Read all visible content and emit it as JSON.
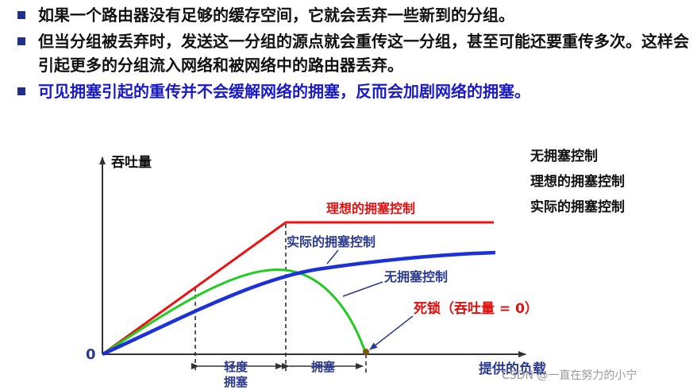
{
  "bullets": [
    {
      "text": "如果一个路由器没有足够的缓存空间，它就会丢弃一些新到的分组。",
      "color": "#111111"
    },
    {
      "text": "但当分组被丢弃时，发送这一分组的源点就会重传这一分组，甚至可能还要重传多次。这样会引起更多的分组流入网络和被网络中的路由器丢弃。",
      "color": "#111111"
    },
    {
      "text": "可见拥塞引起的重传并不会缓解网络的拥塞，反而会加剧网络的拥塞。",
      "color": "#1a1acc"
    }
  ],
  "legend": [
    "无拥塞控制",
    "理想的拥塞控制",
    "实际的拥塞控制"
  ],
  "diagram": {
    "y_axis_label": "吞吐量",
    "x_axis_label": "提供的负载",
    "origin_label": "0",
    "curve_labels": {
      "ideal": "理想的拥塞控制",
      "actual": "实际的拥塞控制",
      "none": "无拥塞控制",
      "deadlock": "死锁（吞吐量 = 0）"
    },
    "regions": {
      "light": [
        "轻度",
        "拥塞"
      ],
      "heavy": "拥塞"
    },
    "colors": {
      "ideal": "#ee1111",
      "actual": "#1c32d8",
      "none": "#22cc22",
      "label_blue": "#2b3a8f",
      "label_red": "#e01010",
      "axis": "#333333"
    }
  },
  "watermark": "CSDN @一直在努力的小宁"
}
